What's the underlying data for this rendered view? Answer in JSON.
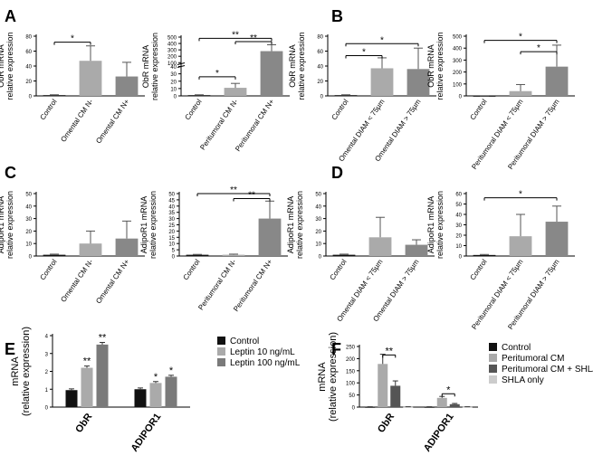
{
  "colors": {
    "control": "#111111",
    "light": "#aaaaaa",
    "mid": "#7a7a7a",
    "dark": "#555555",
    "pale": "#cccccc"
  },
  "chart_data": [
    {
      "panel": "A",
      "type": "bar",
      "ylabel": "ObR mRNA",
      "ylabel2": "relative expression",
      "ylim": [
        0,
        80
      ],
      "yticks": [
        0,
        20,
        40,
        60,
        80
      ],
      "categories": [
        "Control",
        "Omental CM N-",
        "Omental CM N+"
      ],
      "values": [
        1,
        47,
        26
      ],
      "errors": [
        0.5,
        20,
        19
      ],
      "colors": [
        "#111111",
        "#aaaaaa",
        "#888888"
      ],
      "sig": [
        {
          "from": 0,
          "to": 1,
          "label": "*",
          "y": 72
        }
      ]
    },
    {
      "panel": "",
      "type": "bar",
      "ylabel": "ObR mRNA",
      "ylabel2": "relative expression",
      "ylim": [
        0,
        500
      ],
      "yticks": [
        0,
        10,
        20,
        30,
        40,
        100,
        200,
        300,
        400,
        500
      ],
      "broken": {
        "low": 40,
        "split": 0.5
      },
      "categories": [
        "Control",
        "Peritumoral CM N-",
        "Peritumoral CM N+"
      ],
      "values": [
        1,
        11,
        280
      ],
      "errors": [
        0.5,
        6,
        100
      ],
      "colors": [
        "#111111",
        "#aaaaaa",
        "#888888"
      ],
      "sig": [
        {
          "from": 0,
          "to": 1,
          "label": "*",
          "y": 26
        },
        {
          "from": 1,
          "to": 2,
          "label": "**",
          "y": 430
        },
        {
          "from": 0,
          "to": 2,
          "label": "**",
          "y": 480
        }
      ]
    },
    {
      "panel": "B",
      "type": "bar",
      "ylabel": "ObR mRNA",
      "ylabel2": "relative expression",
      "ylim": [
        0,
        80
      ],
      "yticks": [
        0,
        20,
        40,
        60,
        80
      ],
      "categories": [
        "Control",
        "Omental DIAM < 75µm",
        "Omental DIAM > 75µm"
      ],
      "values": [
        1,
        37,
        36
      ],
      "errors": [
        0.5,
        14,
        28
      ],
      "colors": [
        "#111111",
        "#aaaaaa",
        "#888888"
      ],
      "sig": [
        {
          "from": 0,
          "to": 1,
          "label": "*",
          "y": 54
        },
        {
          "from": 0,
          "to": 2,
          "label": "*",
          "y": 70
        }
      ]
    },
    {
      "panel": "",
      "type": "bar",
      "ylabel": "ObR mRNA",
      "ylabel2": "relative expression",
      "ylim": [
        0,
        500
      ],
      "yticks": [
        0,
        100,
        200,
        300,
        400,
        500
      ],
      "categories": [
        "Control",
        "Peritumoral DIAM < 75µm",
        "Peritumoral DIAM > 75µm"
      ],
      "values": [
        1,
        40,
        245
      ],
      "errors": [
        0.5,
        55,
        180
      ],
      "colors": [
        "#111111",
        "#aaaaaa",
        "#888888"
      ],
      "sig": [
        {
          "from": 1,
          "to": 2,
          "label": "*",
          "y": 370
        },
        {
          "from": 0,
          "to": 2,
          "label": "*",
          "y": 465
        }
      ]
    },
    {
      "panel": "C",
      "type": "bar",
      "ylabel": "AdipoR1 mRNA",
      "ylabel2": "relative expression",
      "ylim": [
        0,
        50
      ],
      "yticks": [
        0,
        10,
        20,
        30,
        40,
        50
      ],
      "categories": [
        "Control",
        "Omental CM N-",
        "Omental CM N+"
      ],
      "values": [
        1,
        10,
        14
      ],
      "errors": [
        0.5,
        10,
        14
      ],
      "colors": [
        "#111111",
        "#aaaaaa",
        "#888888"
      ],
      "sig": []
    },
    {
      "panel": "",
      "type": "bar",
      "ylabel": "AdipoR1 mRNA",
      "ylabel2": "relative expression",
      "ylim": [
        0,
        50
      ],
      "yticks": [
        0,
        5,
        10,
        15,
        20,
        25,
        30,
        35,
        40,
        45,
        50
      ],
      "categories": [
        "Control",
        "Peritumoral CM N-",
        "Peritumoral CM N+"
      ],
      "values": [
        1,
        1,
        30
      ],
      "errors": [
        0.3,
        0.5,
        14
      ],
      "colors": [
        "#111111",
        "#aaaaaa",
        "#888888"
      ],
      "sig": [
        {
          "from": 1,
          "to": 2,
          "label": "**",
          "y": 46
        },
        {
          "from": 0,
          "to": 2,
          "label": "**",
          "y": 50
        }
      ]
    },
    {
      "panel": "D",
      "type": "bar",
      "ylabel": "AdipoR1 mRNA",
      "ylabel2": "relative expression",
      "ylim": [
        0,
        50
      ],
      "yticks": [
        0,
        10,
        20,
        30,
        40,
        50
      ],
      "categories": [
        "Control",
        "Omental DIAM < 75µm",
        "Omental DIAM > 75µm"
      ],
      "values": [
        1,
        15,
        9
      ],
      "errors": [
        0.5,
        16,
        4
      ],
      "colors": [
        "#111111",
        "#aaaaaa",
        "#888888"
      ],
      "sig": []
    },
    {
      "panel": "",
      "type": "bar",
      "ylabel": "AdipoR1 mRNA",
      "ylabel2": "relative expression",
      "ylim": [
        0,
        60
      ],
      "yticks": [
        0,
        10,
        20,
        30,
        40,
        50,
        60
      ],
      "categories": [
        "Control",
        "Peritumoral DIAM < 75µm",
        "Peritumoral DIAM > 75µm"
      ],
      "values": [
        1,
        19,
        33
      ],
      "errors": [
        0.5,
        21,
        15
      ],
      "colors": [
        "#111111",
        "#aaaaaa",
        "#888888"
      ],
      "sig": [
        {
          "from": 0,
          "to": 2,
          "label": "*",
          "y": 56
        }
      ]
    },
    {
      "panel": "E",
      "type": "grouped-bar",
      "ylabel": "mRNA",
      "ylabel2": "(relative expression)",
      "ylim": [
        0,
        4
      ],
      "yticks": [
        0,
        1,
        2,
        3,
        4
      ],
      "categories": [
        "ObR",
        "ADIPOR1"
      ],
      "series": [
        {
          "name": "Control",
          "color": "#111111",
          "values": [
            0.95,
            1.0
          ],
          "errors": [
            0.07,
            0.07
          ]
        },
        {
          "name": "Leptin 10 ng/mL",
          "color": "#aaaaaa",
          "values": [
            2.2,
            1.35
          ],
          "errors": [
            0.1,
            0.08
          ]
        },
        {
          "name": "Leptin 100 ng/mL",
          "color": "#7a7a7a",
          "values": [
            3.5,
            1.7
          ],
          "errors": [
            0.12,
            0.08
          ]
        }
      ],
      "stars": [
        [
          "",
          "**",
          "**"
        ],
        [
          "",
          "*",
          "*"
        ]
      ]
    },
    {
      "panel": "F",
      "type": "grouped-bar",
      "ylabel": "mRNA",
      "ylabel2": "(relative expression)",
      "ylim": [
        0,
        250
      ],
      "yticks": [
        0,
        50,
        100,
        150,
        200,
        250
      ],
      "categories": [
        "ObR",
        "ADIPOR1"
      ],
      "series": [
        {
          "name": "Control",
          "color": "#111111",
          "values": [
            1,
            1
          ],
          "errors": [
            0.5,
            0.5
          ]
        },
        {
          "name": "Peritumoral CM",
          "color": "#aaaaaa",
          "values": [
            178,
            38
          ],
          "errors": [
            40,
            6
          ]
        },
        {
          "name": "Peritumoral CM + SHLA",
          "color": "#555555",
          "values": [
            88,
            12
          ],
          "errors": [
            20,
            3
          ]
        },
        {
          "name": "SHLA only",
          "color": "#cccccc",
          "values": [
            1,
            1
          ],
          "errors": [
            0.5,
            0.5
          ]
        }
      ],
      "sig": [
        {
          "cat": 0,
          "from": 1,
          "to": 2,
          "label": "**",
          "y": 215
        },
        {
          "cat": 1,
          "from": 1,
          "to": 2,
          "label": "*",
          "y": 55
        }
      ]
    }
  ]
}
